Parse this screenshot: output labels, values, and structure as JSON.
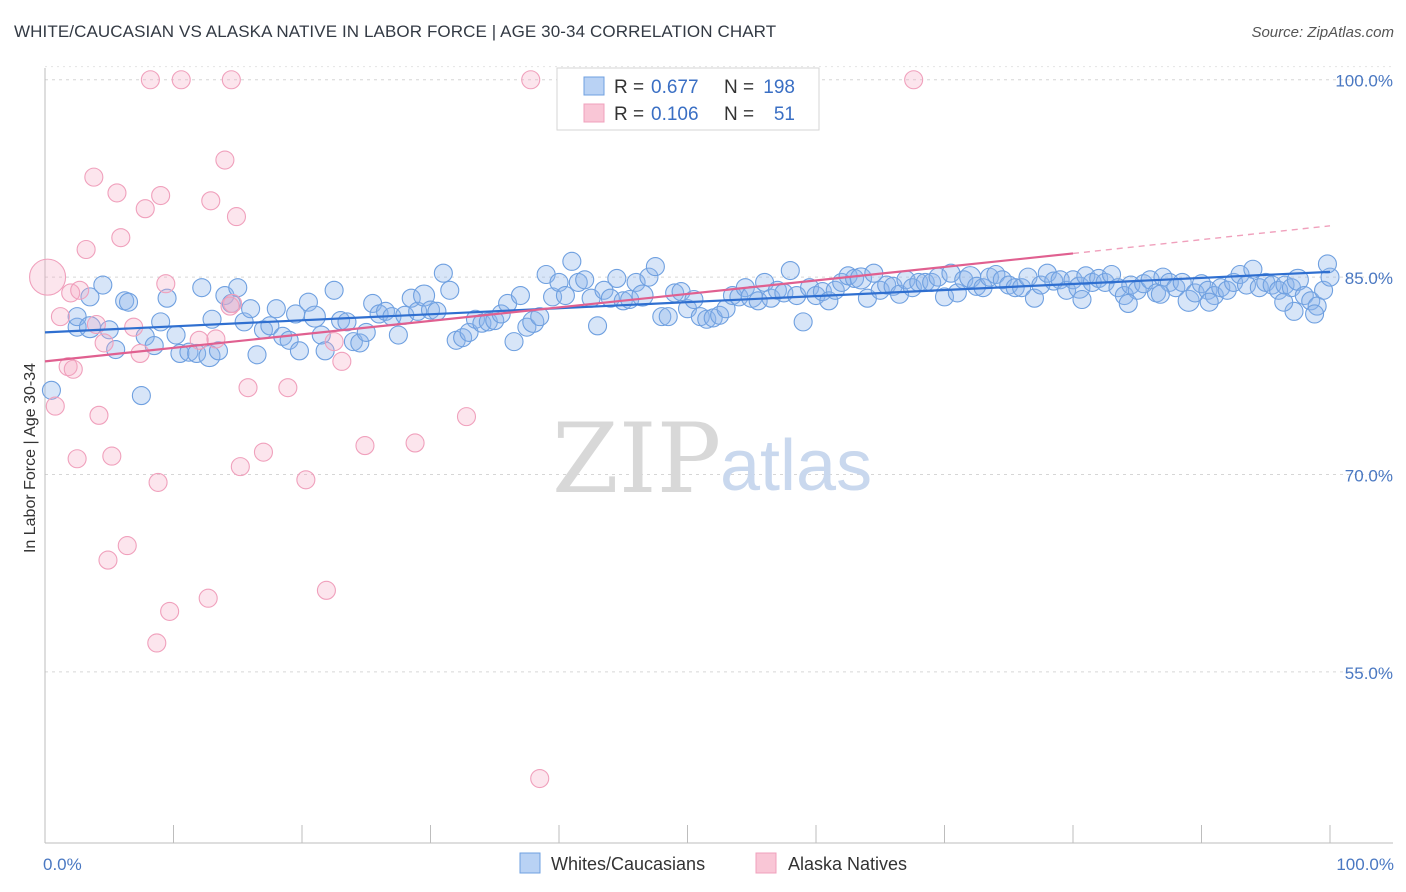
{
  "title": "WHITE/CAUCASIAN VS ALASKA NATIVE IN LABOR FORCE | AGE 30-34 CORRELATION CHART",
  "source": "Source: ZipAtlas.com",
  "watermark": {
    "zip": "ZIP",
    "atlas": "atlas"
  },
  "legend": {
    "r_label": "R =",
    "n_label": "N =",
    "rows": [
      {
        "r": "0.677",
        "n": "198"
      },
      {
        "r": "0.106",
        "n": "51"
      }
    ]
  },
  "chart_data": {
    "type": "scatter",
    "title": "WHITE/CAUCASIAN VS ALASKA NATIVE IN LABOR FORCE | AGE 30-34 CORRELATION CHART",
    "xlabel": "",
    "ylabel": "In Labor Force | Age 30-34",
    "xlim": [
      0,
      100
    ],
    "ylim": [
      42,
      101.5
    ],
    "y_ticks": [
      {
        "value": 100,
        "label": "100.0%"
      },
      {
        "value": 85,
        "label": "85.0%"
      },
      {
        "value": 70,
        "label": "70.0%"
      },
      {
        "value": 55,
        "label": "55.0%"
      }
    ],
    "x_tick_labels": [
      {
        "value": 0,
        "label": "0.0%"
      },
      {
        "value": 100,
        "label": "100.0%"
      }
    ],
    "grid": true,
    "legend_placement": "top-center",
    "series": [
      {
        "name": "Whites/Caucasians",
        "color": "#6fa0e0",
        "line_color": "#2f6fd0",
        "trend": {
          "x0": 0,
          "y0": 80.8,
          "x1": 100,
          "y1": 85.4
        },
        "points": [
          [
            0.5,
            76.4
          ],
          [
            2.5,
            81.2
          ],
          [
            2.5,
            82.0
          ],
          [
            3.5,
            81.2
          ],
          [
            3.5,
            83.5
          ],
          [
            4.5,
            84.4
          ],
          [
            5.0,
            81.0
          ],
          [
            5.5,
            79.5
          ],
          [
            6.2,
            83.2
          ],
          [
            6.5,
            83.1
          ],
          [
            7.5,
            76.0
          ],
          [
            7.8,
            80.5
          ],
          [
            8.5,
            79.8
          ],
          [
            9.0,
            81.6
          ],
          [
            9.5,
            83.4
          ],
          [
            10.2,
            80.6
          ],
          [
            10.5,
            79.2
          ],
          [
            11.2,
            79.3
          ],
          [
            11.8,
            79.2
          ],
          [
            12.2,
            84.2
          ],
          [
            12.8,
            79.0
          ],
          [
            13.0,
            81.8
          ],
          [
            13.5,
            79.4
          ],
          [
            14.0,
            83.6
          ],
          [
            14.5,
            83.0
          ],
          [
            15.0,
            84.2
          ],
          [
            15.5,
            81.6
          ],
          [
            16.0,
            82.6
          ],
          [
            16.5,
            79.1
          ],
          [
            17.0,
            81.0
          ],
          [
            17.5,
            81.3
          ],
          [
            18.0,
            82.6
          ],
          [
            18.5,
            80.5
          ],
          [
            19.0,
            80.2
          ],
          [
            19.5,
            82.2
          ],
          [
            19.8,
            79.4
          ],
          [
            20.5,
            83.1
          ],
          [
            21.0,
            82.0
          ],
          [
            21.5,
            80.6
          ],
          [
            21.8,
            79.4
          ],
          [
            22.5,
            84.0
          ],
          [
            23.0,
            81.7
          ],
          [
            23.5,
            81.6
          ],
          [
            24.0,
            80.1
          ],
          [
            24.5,
            80.0
          ],
          [
            25.0,
            80.8
          ],
          [
            25.5,
            83.0
          ],
          [
            26.0,
            82.2
          ],
          [
            26.5,
            82.4
          ],
          [
            27.0,
            82.0
          ],
          [
            27.5,
            80.6
          ],
          [
            28.0,
            82.1
          ],
          [
            28.5,
            83.4
          ],
          [
            29.0,
            82.4
          ],
          [
            29.5,
            83.6
          ],
          [
            30.0,
            82.5
          ],
          [
            30.5,
            82.4
          ],
          [
            31.0,
            85.3
          ],
          [
            31.5,
            84.0
          ],
          [
            32.0,
            80.2
          ],
          [
            32.5,
            80.4
          ],
          [
            33.0,
            80.8
          ],
          [
            33.5,
            81.8
          ],
          [
            34.0,
            81.5
          ],
          [
            34.5,
            81.6
          ],
          [
            35.0,
            81.7
          ],
          [
            35.5,
            82.2
          ],
          [
            36.0,
            83.0
          ],
          [
            36.5,
            80.1
          ],
          [
            37.0,
            83.6
          ],
          [
            37.5,
            81.2
          ],
          [
            38.0,
            81.6
          ],
          [
            38.5,
            82.0
          ],
          [
            39.0,
            85.2
          ],
          [
            39.5,
            83.5
          ],
          [
            40.0,
            84.6
          ],
          [
            40.5,
            83.6
          ],
          [
            41.0,
            86.2
          ],
          [
            41.5,
            84.6
          ],
          [
            42.0,
            84.8
          ],
          [
            42.5,
            83.4
          ],
          [
            43.0,
            81.3
          ],
          [
            43.5,
            84.0
          ],
          [
            44.0,
            83.4
          ],
          [
            44.5,
            84.9
          ],
          [
            45.0,
            83.2
          ],
          [
            45.5,
            83.3
          ],
          [
            46.0,
            84.6
          ],
          [
            46.5,
            83.6
          ],
          [
            47.0,
            85.0
          ],
          [
            47.5,
            85.8
          ],
          [
            48.0,
            82.0
          ],
          [
            48.5,
            82.0
          ],
          [
            49.0,
            83.8
          ],
          [
            49.5,
            83.9
          ],
          [
            50.0,
            82.6
          ],
          [
            50.5,
            83.3
          ],
          [
            51.0,
            82.0
          ],
          [
            51.5,
            81.8
          ],
          [
            52.0,
            81.9
          ],
          [
            52.5,
            82.1
          ],
          [
            53.0,
            82.6
          ],
          [
            53.5,
            83.6
          ],
          [
            54.0,
            83.5
          ],
          [
            54.5,
            84.2
          ],
          [
            55.0,
            83.5
          ],
          [
            55.5,
            83.2
          ],
          [
            56.0,
            84.6
          ],
          [
            56.5,
            83.4
          ],
          [
            57.0,
            84.0
          ],
          [
            57.5,
            83.8
          ],
          [
            58.0,
            85.5
          ],
          [
            58.5,
            83.6
          ],
          [
            59.0,
            81.6
          ],
          [
            59.5,
            84.2
          ],
          [
            60.0,
            83.6
          ],
          [
            60.5,
            83.9
          ],
          [
            61.0,
            83.2
          ],
          [
            61.5,
            84.0
          ],
          [
            62.0,
            84.6
          ],
          [
            62.5,
            85.1
          ],
          [
            63.0,
            84.9
          ],
          [
            63.5,
            84.9
          ],
          [
            64.0,
            83.4
          ],
          [
            64.5,
            85.3
          ],
          [
            65.0,
            84.0
          ],
          [
            65.5,
            84.4
          ],
          [
            66.0,
            84.3
          ],
          [
            66.5,
            83.7
          ],
          [
            67.0,
            84.8
          ],
          [
            67.5,
            84.2
          ],
          [
            68.0,
            84.6
          ],
          [
            68.5,
            84.6
          ],
          [
            69.0,
            84.6
          ],
          [
            69.5,
            85.0
          ],
          [
            70.0,
            83.5
          ],
          [
            70.5,
            85.3
          ],
          [
            71.0,
            83.8
          ],
          [
            71.5,
            84.8
          ],
          [
            72.0,
            85.0
          ],
          [
            72.5,
            84.3
          ],
          [
            73.0,
            84.2
          ],
          [
            73.5,
            85.0
          ],
          [
            74.0,
            85.2
          ],
          [
            74.5,
            84.8
          ],
          [
            75.0,
            84.4
          ],
          [
            75.5,
            84.2
          ],
          [
            76.0,
            84.2
          ],
          [
            76.5,
            85.0
          ],
          [
            77.0,
            83.4
          ],
          [
            77.5,
            84.4
          ],
          [
            78.0,
            85.3
          ],
          [
            78.5,
            84.7
          ],
          [
            79.0,
            84.8
          ],
          [
            79.5,
            84.0
          ],
          [
            80.0,
            84.8
          ],
          [
            80.5,
            84.2
          ],
          [
            81.0,
            85.1
          ],
          [
            81.5,
            84.6
          ],
          [
            82.0,
            84.9
          ],
          [
            82.5,
            84.6
          ],
          [
            83.0,
            85.2
          ],
          [
            83.5,
            84.2
          ],
          [
            84.0,
            83.6
          ],
          [
            84.5,
            84.4
          ],
          [
            85.0,
            84.0
          ],
          [
            85.5,
            84.5
          ],
          [
            86.0,
            84.8
          ],
          [
            86.5,
            83.8
          ],
          [
            87.0,
            85.0
          ],
          [
            87.5,
            84.6
          ],
          [
            88.0,
            84.2
          ],
          [
            88.5,
            84.6
          ],
          [
            89.0,
            83.2
          ],
          [
            89.5,
            83.8
          ],
          [
            90.0,
            84.5
          ],
          [
            90.5,
            84.0
          ],
          [
            91.0,
            83.6
          ],
          [
            91.5,
            84.2
          ],
          [
            92.0,
            84.0
          ],
          [
            92.5,
            84.6
          ],
          [
            93.0,
            85.2
          ],
          [
            93.5,
            84.4
          ],
          [
            94.0,
            85.6
          ],
          [
            94.5,
            84.2
          ],
          [
            95.0,
            84.6
          ],
          [
            95.5,
            84.4
          ],
          [
            96.0,
            84.0
          ],
          [
            96.5,
            84.4
          ],
          [
            97.0,
            84.2
          ],
          [
            97.5,
            84.8
          ],
          [
            98.0,
            83.6
          ],
          [
            98.5,
            83.2
          ],
          [
            99.0,
            82.8
          ],
          [
            99.5,
            84.0
          ],
          [
            100.0,
            85.0
          ],
          [
            99.8,
            86.0
          ],
          [
            97.2,
            82.4
          ],
          [
            96.4,
            83.1
          ],
          [
            98.8,
            82.2
          ],
          [
            90.6,
            83.1
          ],
          [
            86.8,
            83.7
          ],
          [
            84.3,
            83.0
          ],
          [
            80.7,
            83.3
          ]
        ]
      },
      {
        "name": "Alaska Natives",
        "color": "#f0a0bc",
        "line_color": "#e06090",
        "trend": {
          "x0": 0,
          "y0": 78.6,
          "x1": 80,
          "y1": 86.8
        },
        "trend_dashed": {
          "x0": 80,
          "y0": 86.8,
          "x1": 100,
          "y1": 88.9
        },
        "points": [
          [
            0.2,
            85.0
          ],
          [
            0.8,
            75.2
          ],
          [
            1.2,
            82.0
          ],
          [
            1.8,
            78.2
          ],
          [
            2.2,
            78.0
          ],
          [
            2.5,
            71.2
          ],
          [
            3.2,
            87.1
          ],
          [
            3.8,
            92.6
          ],
          [
            4.2,
            74.5
          ],
          [
            4.6,
            80.0
          ],
          [
            4.9,
            63.5
          ],
          [
            5.2,
            71.4
          ],
          [
            5.6,
            91.4
          ],
          [
            5.9,
            88.0
          ],
          [
            6.4,
            64.6
          ],
          [
            6.9,
            81.2
          ],
          [
            7.4,
            79.2
          ],
          [
            7.8,
            90.2
          ],
          [
            8.2,
            100.0
          ],
          [
            8.7,
            57.2
          ],
          [
            8.8,
            69.4
          ],
          [
            9.0,
            91.2
          ],
          [
            9.4,
            84.5
          ],
          [
            9.7,
            59.6
          ],
          [
            10.6,
            100.0
          ],
          [
            12.7,
            60.6
          ],
          [
            12.9,
            90.8
          ],
          [
            13.3,
            80.3
          ],
          [
            14.0,
            93.9
          ],
          [
            14.5,
            100.0
          ],
          [
            14.6,
            83.0
          ],
          [
            14.9,
            89.6
          ],
          [
            15.2,
            70.6
          ],
          [
            15.8,
            76.6
          ],
          [
            17.0,
            71.7
          ],
          [
            18.9,
            76.6
          ],
          [
            20.3,
            69.6
          ],
          [
            21.9,
            61.2
          ],
          [
            22.5,
            80.1
          ],
          [
            23.1,
            78.6
          ],
          [
            24.9,
            72.2
          ],
          [
            28.8,
            72.4
          ],
          [
            32.8,
            74.4
          ],
          [
            37.8,
            100.0
          ],
          [
            38.5,
            46.9
          ],
          [
            67.6,
            100.0
          ],
          [
            2.0,
            83.8
          ],
          [
            2.7,
            84.0
          ],
          [
            4.0,
            81.4
          ],
          [
            12.0,
            80.2
          ],
          [
            14.4,
            82.8
          ]
        ]
      }
    ]
  }
}
